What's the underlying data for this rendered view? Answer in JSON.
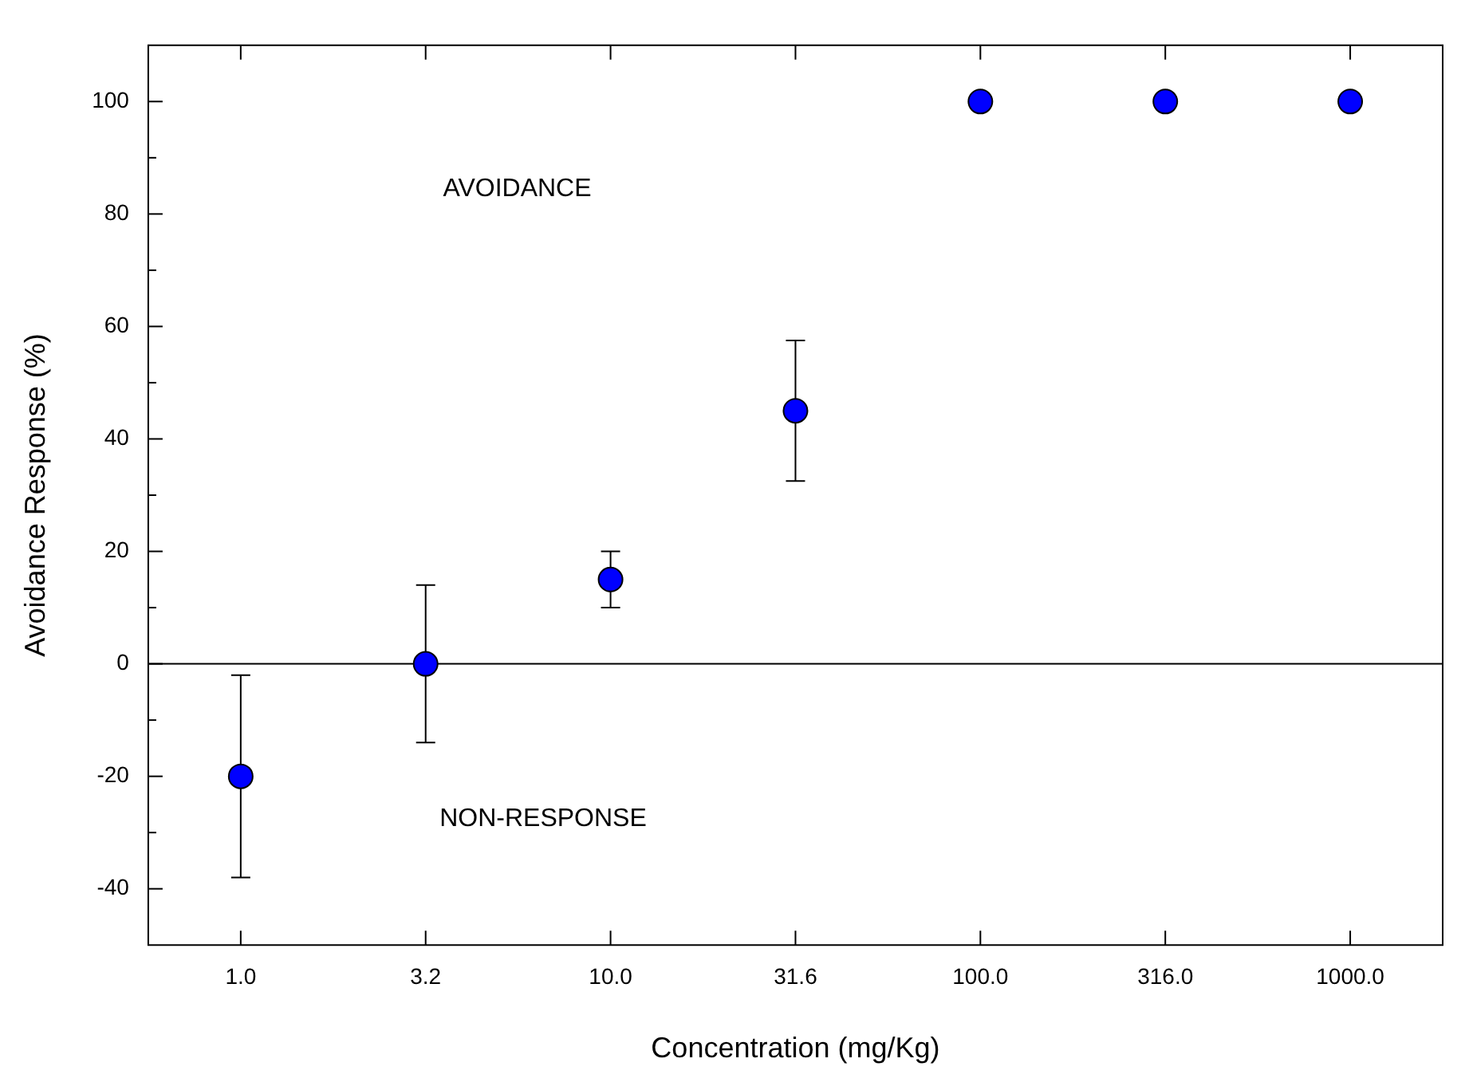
{
  "chart_data": {
    "type": "scatter",
    "xlabel": "Concentration (mg/Kg)",
    "ylabel": "Avoidance Response (%)",
    "categories": [
      "1.0",
      "3.2",
      "10.0",
      "31.6",
      "100.0",
      "316.0",
      "1000.0"
    ],
    "series": [
      {
        "color": "#0000ff",
        "values": [
          -20,
          0,
          15,
          45,
          100,
          100,
          100
        ],
        "errors": [
          18,
          14,
          5,
          12.5,
          null,
          null,
          null
        ]
      }
    ],
    "ylim": [
      -50,
      110
    ],
    "yticks": [
      -40,
      {
        "value": -30,
        "label": null
      },
      -20,
      {
        "value": -10,
        "label": null
      },
      0,
      {
        "value": 10,
        "label": null
      },
      20,
      {
        "value": 30,
        "label": null
      },
      40,
      {
        "value": 50,
        "label": null
      },
      60,
      {
        "value": 70,
        "label": null
      },
      80,
      {
        "value": 90,
        "label": null
      },
      100
    ],
    "ref_lines": [
      {
        "axis": "y",
        "value": 0
      }
    ],
    "annotations": [
      "AVOIDANCE",
      "NON-RESPONSE"
    ],
    "marker": "circle"
  }
}
